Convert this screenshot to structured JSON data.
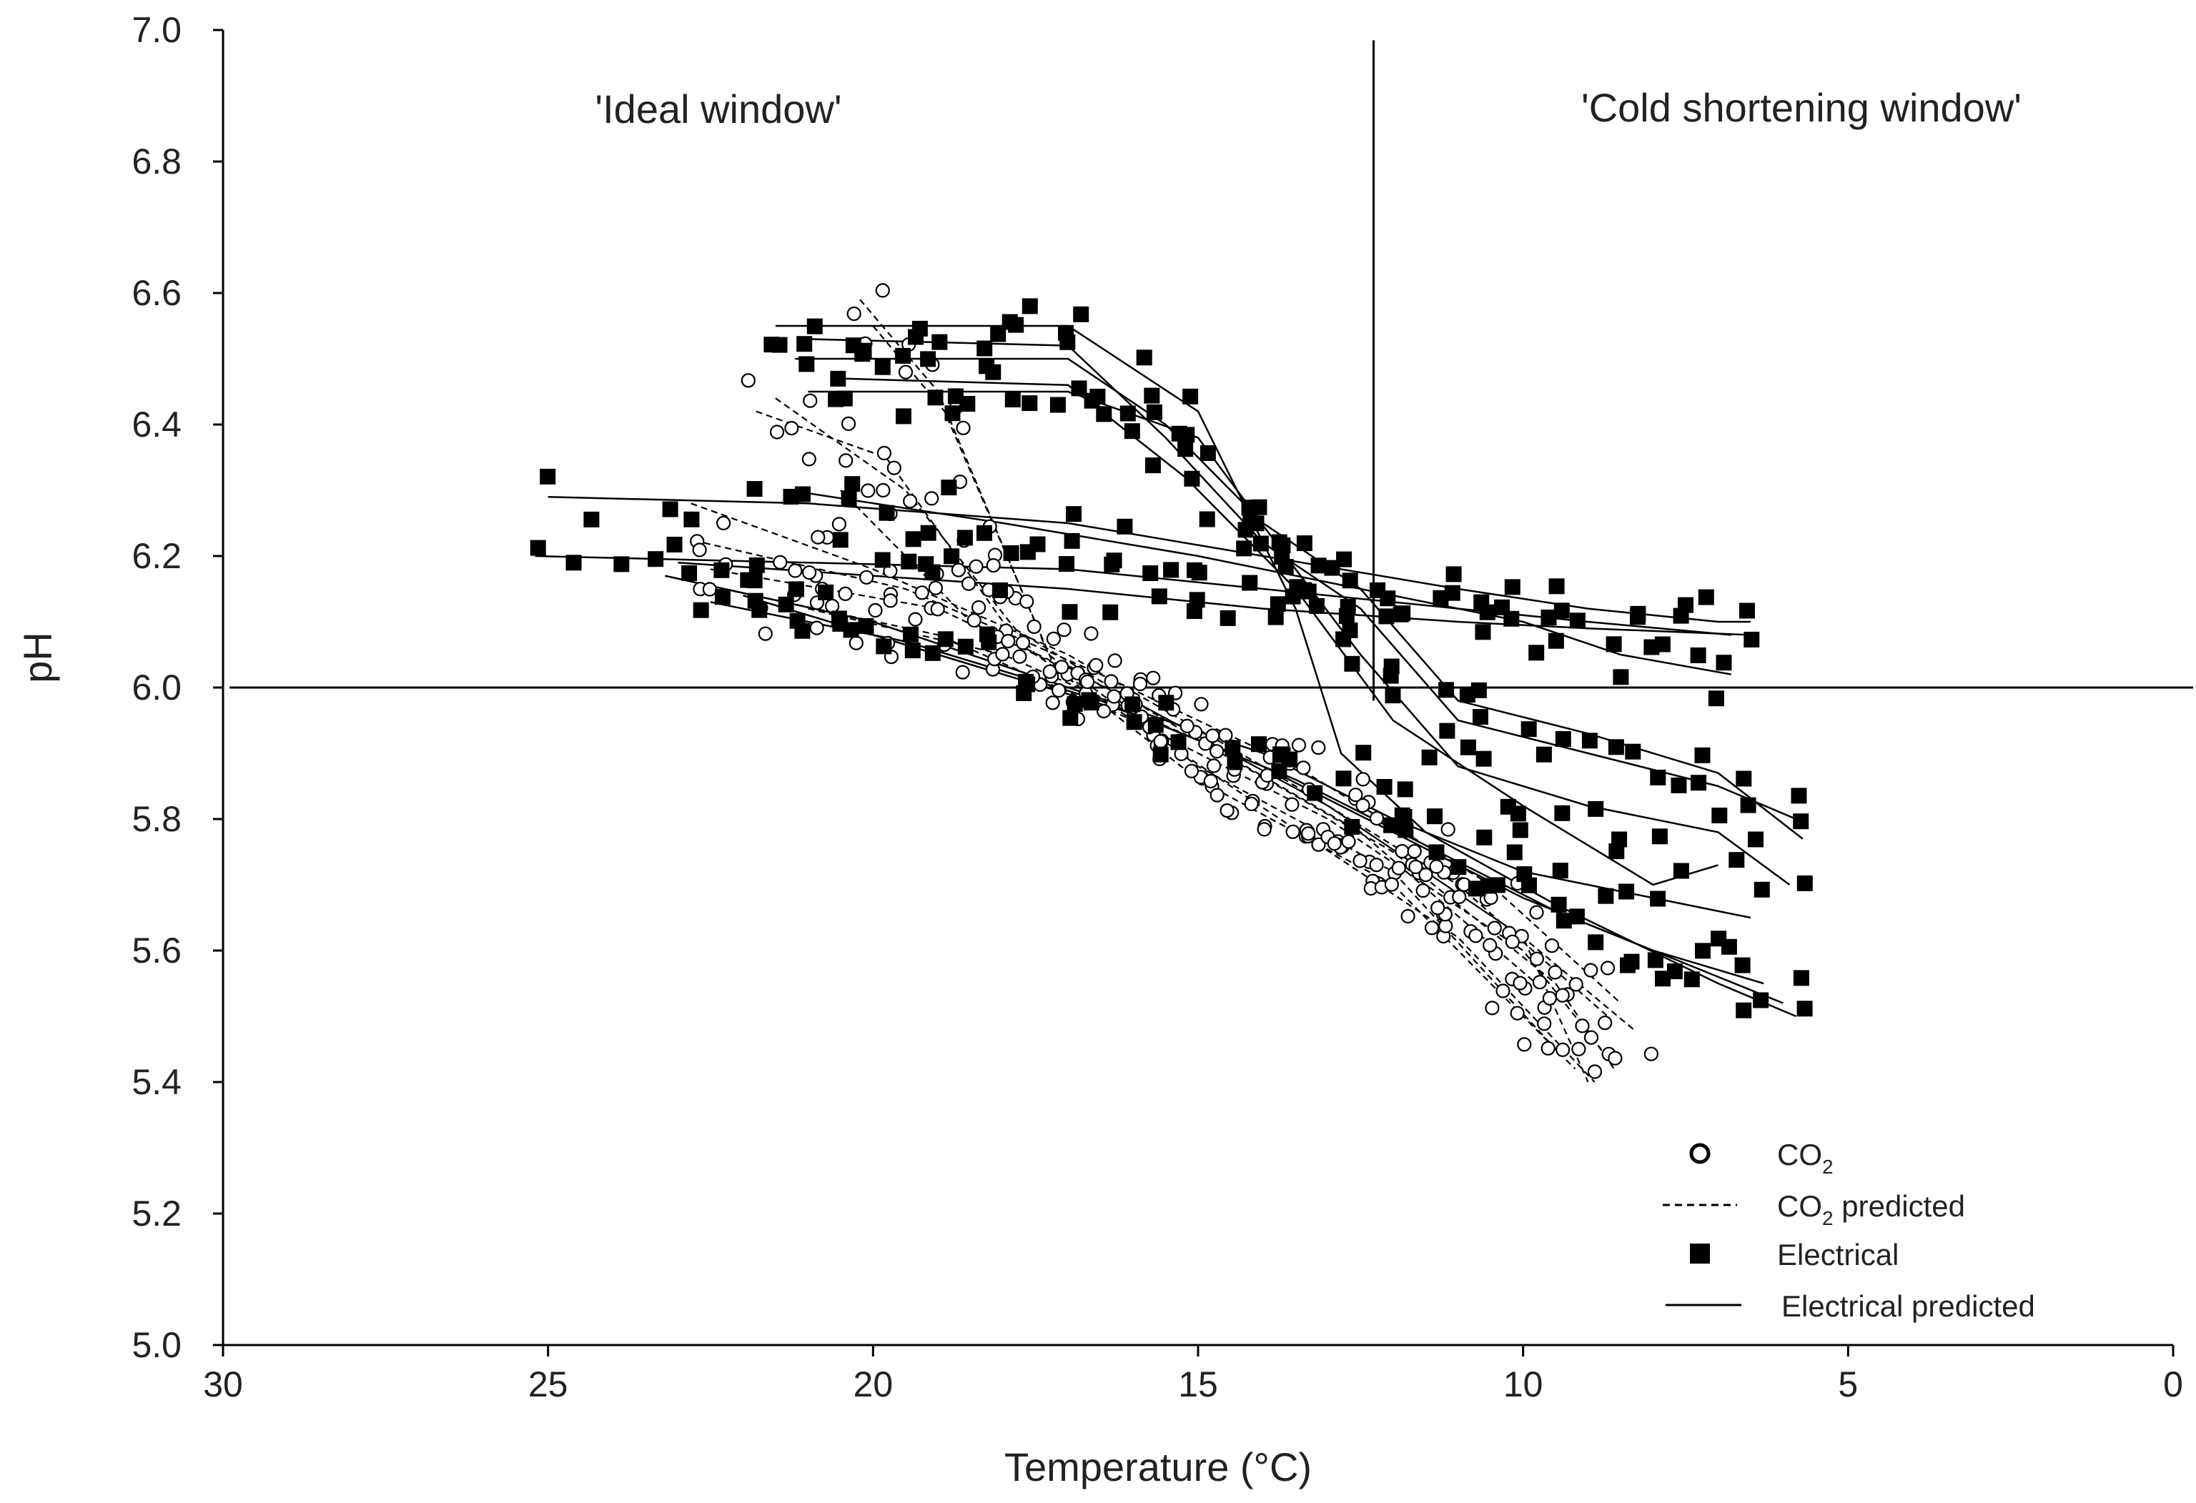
{
  "chart_data": {
    "type": "scatter",
    "title": "",
    "xlabel": "Temperature  (°C)",
    "ylabel": "pH",
    "xlim": [
      30,
      0
    ],
    "ylim": [
      5.0,
      7.0
    ],
    "x_ticks": [
      "30",
      "25",
      "20",
      "15",
      "10",
      "5",
      "0"
    ],
    "y_ticks": [
      "5.0",
      "5.2",
      "5.4",
      "5.6",
      "5.8",
      "6.0",
      "6.2",
      "6.4",
      "6.6",
      "6.8",
      "7.0"
    ],
    "reference_lines": {
      "vertical_temperature": 12.3,
      "horizontal_ph": 6.0
    },
    "annotations": {
      "ideal_window": "'Ideal window'",
      "cold_shortening_window": "'Cold shortening window'"
    },
    "legend": {
      "position": "bottom-right",
      "co2_base": "CO",
      "co2_sub": "2",
      "co2_predicted_base": "CO",
      "co2_predicted_sub": "2",
      "co2_predicted_suffix": " predicted",
      "electrical": "Electrical",
      "electrical_predicted": "Electrical predicted"
    },
    "co2_predicted_curves": [
      [
        [
          20.2,
          6.59
        ],
        [
          19.0,
          6.45
        ],
        [
          17.3,
          6.05
        ],
        [
          15.0,
          5.88
        ],
        [
          12.0,
          5.72
        ],
        [
          9.5,
          5.45
        ]
      ],
      [
        [
          20.0,
          6.55
        ],
        [
          18.9,
          6.42
        ],
        [
          17.2,
          6.03
        ],
        [
          15.0,
          5.86
        ],
        [
          12.0,
          5.7
        ],
        [
          9.2,
          5.42
        ]
      ],
      [
        [
          21.5,
          6.44
        ],
        [
          19.5,
          6.3
        ],
        [
          17.5,
          6.05
        ],
        [
          14.5,
          5.85
        ],
        [
          11.0,
          5.62
        ],
        [
          8.9,
          5.4
        ]
      ],
      [
        [
          22.8,
          6.28
        ],
        [
          20.0,
          6.18
        ],
        [
          17.0,
          6.05
        ],
        [
          14.0,
          5.88
        ],
        [
          11.0,
          5.7
        ],
        [
          8.7,
          5.5
        ]
      ],
      [
        [
          22.6,
          6.22
        ],
        [
          19.5,
          6.15
        ],
        [
          16.5,
          6.02
        ],
        [
          13.5,
          5.88
        ],
        [
          10.5,
          5.7
        ],
        [
          8.5,
          5.52
        ]
      ],
      [
        [
          22.5,
          6.18
        ],
        [
          19.0,
          6.12
        ],
        [
          16.0,
          5.98
        ],
        [
          13.0,
          5.82
        ],
        [
          10.0,
          5.62
        ],
        [
          8.3,
          5.48
        ]
      ],
      [
        [
          22.3,
          6.15
        ],
        [
          19.0,
          6.08
        ],
        [
          16.0,
          5.95
        ],
        [
          13.0,
          5.8
        ],
        [
          10.0,
          5.6
        ],
        [
          8.8,
          5.45
        ]
      ],
      [
        [
          21.0,
          6.12
        ],
        [
          18.0,
          6.05
        ],
        [
          15.0,
          5.92
        ],
        [
          12.0,
          5.75
        ],
        [
          9.5,
          5.55
        ],
        [
          8.6,
          5.42
        ]
      ],
      [
        [
          20.5,
          6.3
        ],
        [
          18.5,
          6.1
        ],
        [
          16.0,
          5.98
        ],
        [
          13.0,
          5.82
        ],
        [
          10.0,
          5.62
        ],
        [
          9.0,
          5.4
        ]
      ],
      [
        [
          21.8,
          6.42
        ],
        [
          19.8,
          6.35
        ],
        [
          18.0,
          6.1
        ],
        [
          15.5,
          5.95
        ],
        [
          12.5,
          5.78
        ],
        [
          9.8,
          5.55
        ]
      ]
    ],
    "electrical_predicted_curves": [
      [
        [
          21.5,
          6.55
        ],
        [
          17.0,
          6.55
        ],
        [
          15.0,
          6.42
        ],
        [
          13.5,
          6.12
        ],
        [
          12.8,
          5.9
        ],
        [
          11.5,
          5.78
        ],
        [
          9.5,
          5.67
        ],
        [
          7.0,
          5.55
        ],
        [
          5.8,
          5.5
        ]
      ],
      [
        [
          21.0,
          6.53
        ],
        [
          17.0,
          6.52
        ],
        [
          15.5,
          6.38
        ],
        [
          14.0,
          6.22
        ],
        [
          12.5,
          6.12
        ],
        [
          11.0,
          5.95
        ],
        [
          9.0,
          5.9
        ],
        [
          7.0,
          5.85
        ],
        [
          5.8,
          5.8
        ]
      ],
      [
        [
          21.2,
          6.5
        ],
        [
          17.0,
          6.5
        ],
        [
          15.5,
          6.4
        ],
        [
          14.0,
          6.25
        ],
        [
          12.5,
          6.15
        ],
        [
          11.0,
          5.98
        ],
        [
          9.0,
          5.93
        ],
        [
          7.0,
          5.87
        ],
        [
          5.7,
          5.77
        ]
      ],
      [
        [
          21.0,
          6.45
        ],
        [
          17.0,
          6.45
        ],
        [
          15.0,
          6.38
        ],
        [
          13.5,
          6.18
        ],
        [
          12.5,
          6.05
        ],
        [
          11.0,
          5.88
        ],
        [
          9.0,
          5.82
        ],
        [
          7.0,
          5.78
        ],
        [
          5.9,
          5.7
        ]
      ],
      [
        [
          20.5,
          6.47
        ],
        [
          17.0,
          6.46
        ],
        [
          15.2,
          6.32
        ],
        [
          13.5,
          6.15
        ],
        [
          12.0,
          5.95
        ],
        [
          10.0,
          5.82
        ],
        [
          8.0,
          5.7
        ],
        [
          7.0,
          5.73
        ]
      ],
      [
        [
          25.0,
          6.29
        ],
        [
          21.0,
          6.28
        ],
        [
          17.0,
          6.25
        ],
        [
          14.0,
          6.2
        ],
        [
          11.0,
          6.15
        ],
        [
          9.0,
          6.12
        ],
        [
          7.0,
          6.1
        ],
        [
          6.5,
          6.1
        ]
      ],
      [
        [
          25.2,
          6.2
        ],
        [
          21.0,
          6.19
        ],
        [
          17.0,
          6.18
        ],
        [
          14.0,
          6.15
        ],
        [
          11.0,
          6.12
        ],
        [
          9.0,
          6.1
        ],
        [
          6.8,
          6.08
        ]
      ],
      [
        [
          23.0,
          6.19
        ],
        [
          20.0,
          6.17
        ],
        [
          17.0,
          6.15
        ],
        [
          14.0,
          6.12
        ],
        [
          11.0,
          6.1
        ],
        [
          9.0,
          6.09
        ],
        [
          6.5,
          6.08
        ]
      ],
      [
        [
          23.2,
          6.17
        ],
        [
          20.0,
          6.1
        ],
        [
          17.0,
          6.0
        ],
        [
          14.0,
          5.9
        ],
        [
          12.0,
          5.8
        ],
        [
          10.0,
          5.72
        ],
        [
          8.0,
          5.68
        ],
        [
          6.5,
          5.65
        ]
      ],
      [
        [
          22.5,
          6.13
        ],
        [
          19.5,
          6.07
        ],
        [
          16.5,
          5.98
        ],
        [
          14.0,
          5.88
        ],
        [
          12.0,
          5.78
        ],
        [
          10.0,
          5.68
        ],
        [
          8.0,
          5.6
        ],
        [
          6.3,
          5.55
        ]
      ],
      [
        [
          22.0,
          6.14
        ],
        [
          19.0,
          6.05
        ],
        [
          16.0,
          5.96
        ],
        [
          13.5,
          5.86
        ],
        [
          11.5,
          5.76
        ],
        [
          9.5,
          5.66
        ],
        [
          7.5,
          5.58
        ],
        [
          6.0,
          5.52
        ]
      ],
      [
        [
          21.3,
          6.3
        ],
        [
          18.0,
          6.25
        ],
        [
          15.0,
          6.2
        ],
        [
          12.5,
          6.15
        ],
        [
          10.0,
          6.1
        ],
        [
          8.5,
          6.05
        ],
        [
          6.8,
          6.02
        ]
      ]
    ]
  }
}
